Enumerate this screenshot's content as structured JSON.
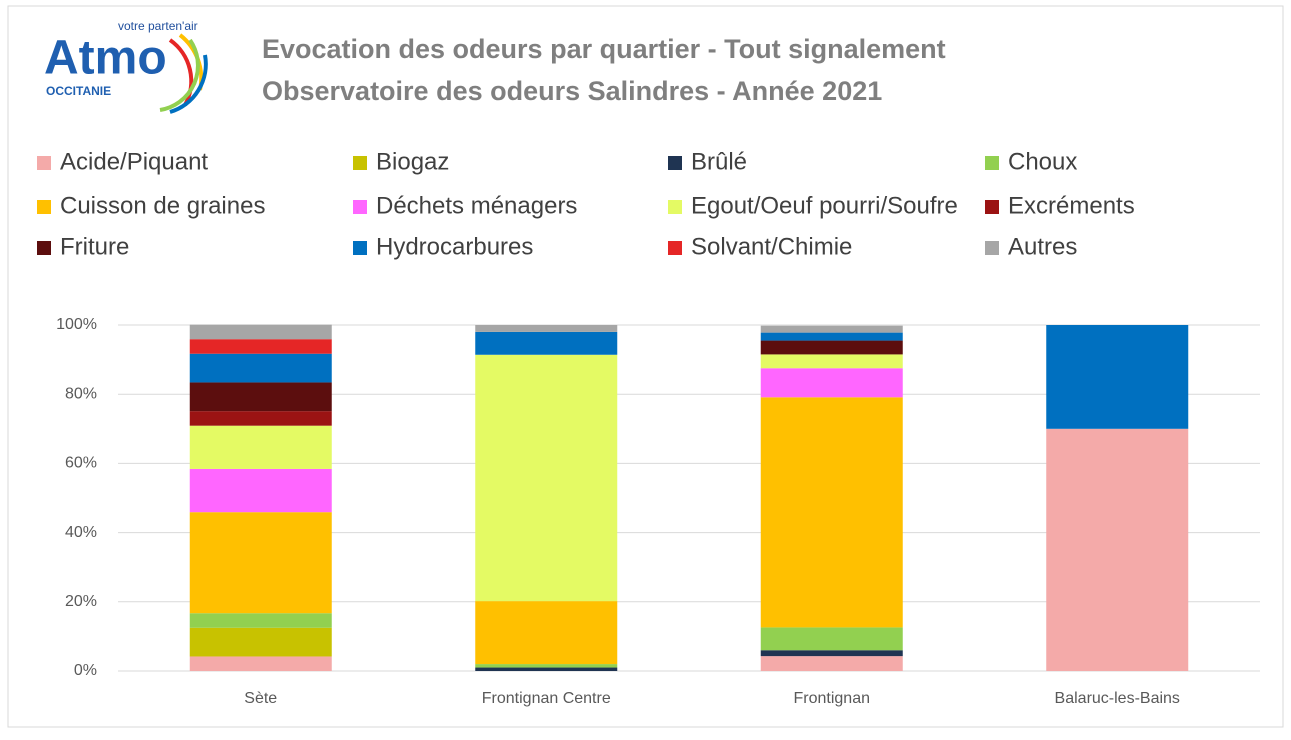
{
  "logo": {
    "name": "Atmo",
    "tagline": "votre parten'air",
    "region": "OCCITANIE"
  },
  "chart_data": {
    "type": "stacked_bar",
    "title": "Evocation des odeurs par quartier - Tout signalement",
    "subtitle": "Observatoire des odeurs Salindres - Année 2021",
    "categories": [
      "Sète",
      "Frontignan Centre",
      "Frontignan",
      "Balaruc-les-Bains"
    ],
    "series": [
      {
        "name": "Acide/Piquant",
        "color": "#f4aaa9",
        "values": [
          4.2,
          0,
          4.3,
          70
        ]
      },
      {
        "name": "Biogaz",
        "color": "#c8c200",
        "values": [
          8.3,
          0,
          0,
          0
        ]
      },
      {
        "name": "Brûlé",
        "color": "#1f3452",
        "values": [
          0,
          1,
          1.7,
          0
        ]
      },
      {
        "name": "Choux",
        "color": "#92d050",
        "values": [
          4.2,
          1,
          6.6,
          0
        ]
      },
      {
        "name": "Cuisson de graines",
        "color": "#ffc000",
        "values": [
          29.2,
          18.2,
          66.5,
          0
        ]
      },
      {
        "name": "Déchets ménagers",
        "color": "#ff66ff",
        "values": [
          12.5,
          0,
          8.4,
          0
        ]
      },
      {
        "name": "Egout/Oeuf pourri/Soufre",
        "color": "#e4fa64",
        "values": [
          12.5,
          71.2,
          4.0,
          0
        ]
      },
      {
        "name": "Excréments",
        "color": "#9b1313",
        "values": [
          4.2,
          0,
          0,
          0
        ]
      },
      {
        "name": "Friture",
        "color": "#5c0e0e",
        "values": [
          8.3,
          0,
          4.0,
          0
        ]
      },
      {
        "name": "Hydrocarbures",
        "color": "#0070c0",
        "values": [
          8.3,
          6.6,
          2.3,
          30
        ]
      },
      {
        "name": "Solvant/Chimie",
        "color": "#e52626",
        "values": [
          4.2,
          0,
          0,
          0
        ]
      },
      {
        "name": "Autres",
        "color": "#a6a6a6",
        "values": [
          4.2,
          2,
          2.0,
          0
        ]
      }
    ],
    "ylim": [
      0,
      100
    ],
    "yticks": [
      {
        "value": 0,
        "label": "0%"
      },
      {
        "value": 20,
        "label": "20%"
      },
      {
        "value": 40,
        "label": "40%"
      },
      {
        "value": 60,
        "label": "60%"
      },
      {
        "value": 80,
        "label": "80%"
      },
      {
        "value": 100,
        "label": "100%"
      }
    ],
    "grid": true
  }
}
